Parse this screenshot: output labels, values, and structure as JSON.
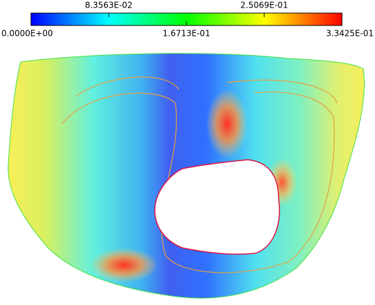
{
  "chart_data": {
    "type": "contour",
    "colormap": [
      "#0000ff",
      "#00ffff",
      "#00ff00",
      "#ffff00",
      "#ff0000"
    ],
    "clim": [
      0,
      0.33425
    ],
    "cticks": [
      {
        "value": 0,
        "label": "0.0000E+00"
      },
      {
        "value": 0.083563,
        "label": "8.3563E-02"
      },
      {
        "value": 0.16713,
        "label": "1.6713E-01"
      },
      {
        "value": 0.25069,
        "label": "2.5069E-01"
      },
      {
        "value": 0.33425,
        "label": "3.3425E-01"
      }
    ]
  }
}
